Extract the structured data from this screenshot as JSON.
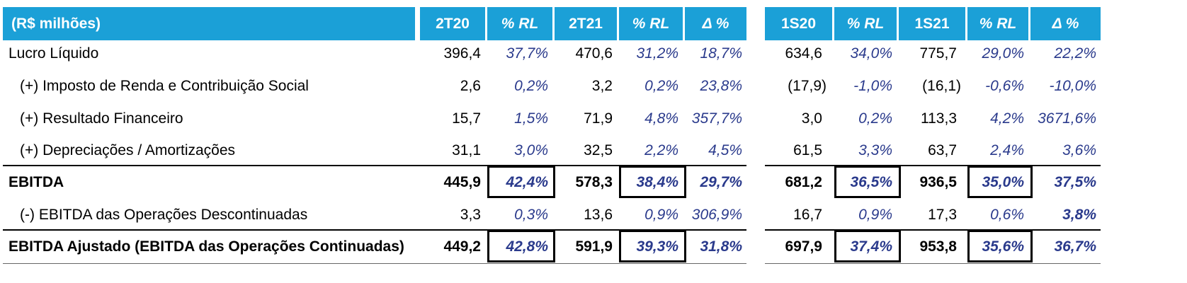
{
  "header": {
    "label": "(R$ milhões)",
    "columns": [
      "2T20",
      "% RL",
      "2T21",
      "% RL",
      "Δ %",
      "1S20",
      "% RL",
      "1S21",
      "% RL",
      "Δ %"
    ]
  },
  "rows": [
    {
      "label": "Lucro Líquido",
      "values": [
        "396,4",
        "37,7%",
        "470,6",
        "31,2%",
        "18,7%",
        "634,6",
        "34,0%",
        "775,7",
        "29,0%",
        "22,2%"
      ]
    },
    {
      "label": "(+) Imposto de Renda e Contribuição Social",
      "values": [
        "2,6",
        "0,2%",
        "3,2",
        "0,2%",
        "23,8%",
        "(17,9)",
        "-1,0%",
        "(16,1)",
        "-0,6%",
        "-10,0%"
      ]
    },
    {
      "label": "(+) Resultado Financeiro",
      "values": [
        "15,7",
        "1,5%",
        "71,9",
        "4,8%",
        "357,7%",
        "3,0",
        "0,2%",
        "113,3",
        "4,2%",
        "3671,6%"
      ]
    },
    {
      "label": "(+) Depreciações / Amortizações",
      "values": [
        "31,1",
        "3,0%",
        "32,5",
        "2,2%",
        "4,5%",
        "61,5",
        "3,3%",
        "63,7",
        "2,4%",
        "3,6%"
      ]
    },
    {
      "label": "EBITDA",
      "values": [
        "445,9",
        "42,4%",
        "578,3",
        "38,4%",
        "29,7%",
        "681,2",
        "36,5%",
        "936,5",
        "35,0%",
        "37,5%"
      ]
    },
    {
      "label": "(-) EBITDA das Operações Descontinuadas",
      "values": [
        "3,3",
        "0,3%",
        "13,6",
        "0,9%",
        "306,9%",
        "16,7",
        "0,9%",
        "17,3",
        "0,6%",
        "3,8%"
      ]
    },
    {
      "label": "EBITDA Ajustado (EBITDA das Operações Continuadas)",
      "values": [
        "449,2",
        "42,8%",
        "591,9",
        "39,3%",
        "31,8%",
        "697,9",
        "37,4%",
        "953,8",
        "35,6%",
        "36,7%"
      ]
    }
  ],
  "colors": {
    "header_bg": "#1ba0d7",
    "percent_text": "#2a3a8c"
  }
}
